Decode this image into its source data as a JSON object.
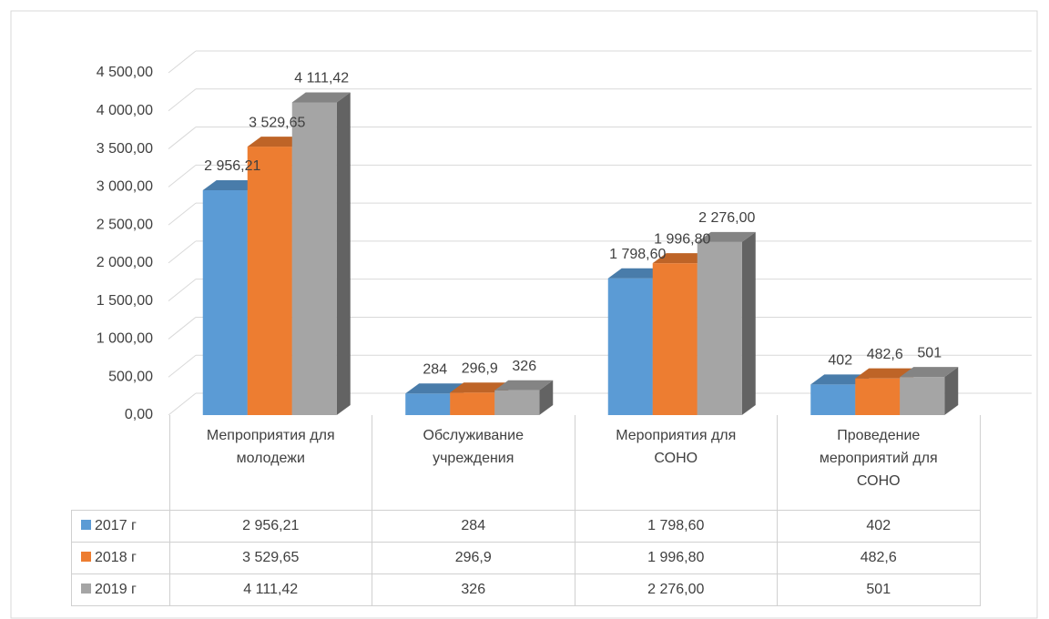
{
  "chart_data": {
    "type": "bar3d",
    "categories": [
      "Мепроприятия для молодежи",
      "Обслуживание учреждения",
      "Мероприятия для СОНО",
      "Проведение мероприятий для СОНО"
    ],
    "series": [
      {
        "name": "2017 г",
        "color": "#5b9bd5",
        "values": [
          2956.21,
          284,
          1798.6,
          402
        ],
        "value_labels": [
          "2 956,21",
          "284",
          "1 798,60",
          "402"
        ]
      },
      {
        "name": "2018 г",
        "color": "#ed7d31",
        "values": [
          3529.65,
          296.9,
          1996.8,
          482.6
        ],
        "value_labels": [
          "3 529,65",
          "296,9",
          "1 996,80",
          "482,6"
        ]
      },
      {
        "name": "2019 г",
        "color": "#a5a5a5",
        "values": [
          4111.42,
          326,
          2276,
          501
        ],
        "value_labels": [
          "4 111,42",
          "326",
          "2 276,00",
          "501"
        ]
      }
    ],
    "ylim": [
      0,
      4500
    ],
    "yticks": [
      {
        "value": 0,
        "label": "0,00"
      },
      {
        "value": 500,
        "label": "500,00"
      },
      {
        "value": 1000,
        "label": "1 000,00"
      },
      {
        "value": 1500,
        "label": "1 500,00"
      },
      {
        "value": 2000,
        "label": "2 000,00"
      },
      {
        "value": 2500,
        "label": "2 500,00"
      },
      {
        "value": 3000,
        "label": "3 000,00"
      },
      {
        "value": 3500,
        "label": "3 500,00"
      },
      {
        "value": 4000,
        "label": "4 000,00"
      },
      {
        "value": 4500,
        "label": "4 500,00"
      }
    ],
    "grid": true,
    "data_table": true
  }
}
